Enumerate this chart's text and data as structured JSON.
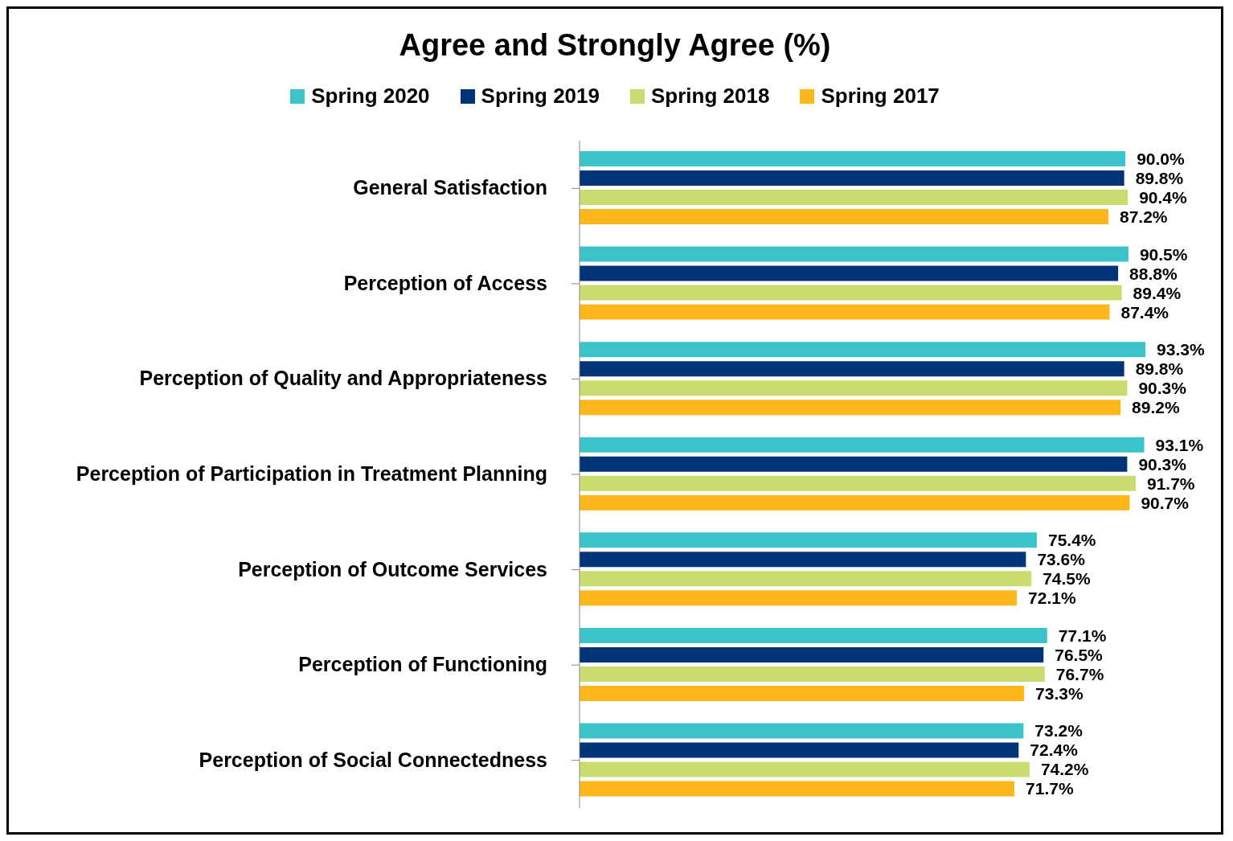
{
  "chart_data": {
    "type": "bar",
    "orientation": "horizontal",
    "title": "Agree and Strongly Agree (%)",
    "legend": "top",
    "categories": [
      "General Satisfaction",
      "Perception of Access",
      "Perception of Quality and Appropriateness",
      "Perception of Participation in Treatment Planning",
      "Perception of Outcome Services",
      "Perception of Functioning",
      "Perception of Social Connectedness"
    ],
    "series": [
      {
        "name": "Spring 2020",
        "color": "#3ac3c9",
        "values": [
          90.0,
          90.5,
          93.3,
          93.1,
          75.4,
          77.1,
          73.2
        ],
        "value_labels": [
          "90.0%",
          "90.5%",
          "93.3%",
          "93.1%",
          "75.4%",
          "77.1%",
          "73.2%"
        ]
      },
      {
        "name": "Spring 2019",
        "color": "#003478",
        "values": [
          89.8,
          88.8,
          89.8,
          90.3,
          73.6,
          76.5,
          72.4
        ],
        "value_labels": [
          "89.8%",
          "88.8%",
          "89.8%",
          "90.3%",
          "73.6%",
          "76.5%",
          "72.4%"
        ]
      },
      {
        "name": "Spring 2018",
        "color": "#c9dc6e",
        "values": [
          90.4,
          89.4,
          90.3,
          91.7,
          74.5,
          76.7,
          74.2
        ],
        "value_labels": [
          "90.4%",
          "89.4%",
          "90.3%",
          "91.7%",
          "74.5%",
          "76.7%",
          "74.2%"
        ]
      },
      {
        "name": "Spring 2017",
        "color": "#fdb71a",
        "values": [
          87.2,
          87.4,
          89.2,
          90.7,
          72.1,
          73.3,
          71.7
        ],
        "value_labels": [
          "87.2%",
          "87.4%",
          "89.2%",
          "90.7%",
          "72.1%",
          "73.3%",
          "71.7%"
        ]
      }
    ]
  }
}
